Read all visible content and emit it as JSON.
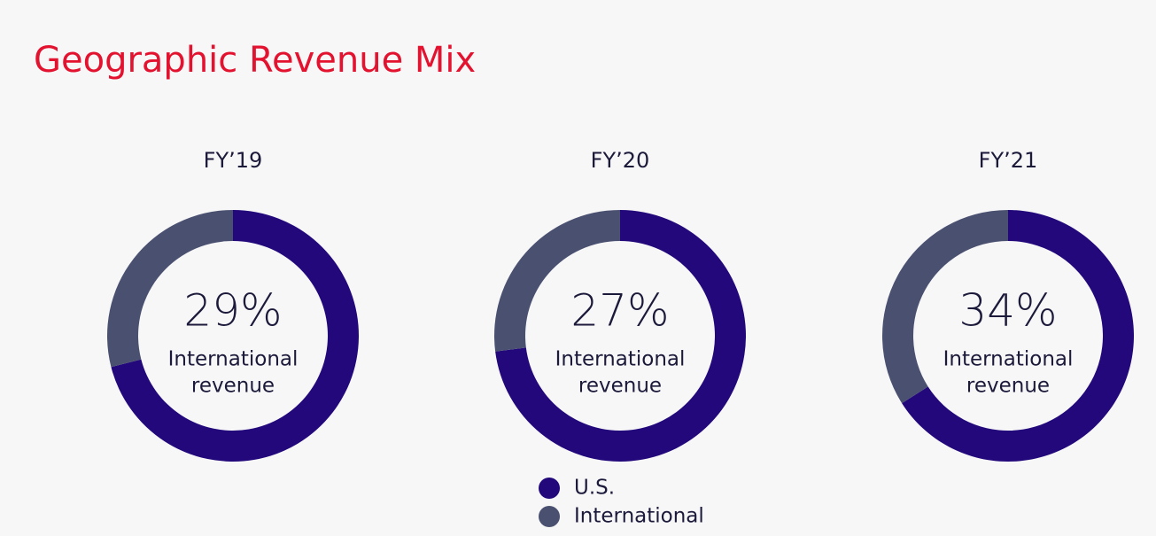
{
  "title": "Geographic Revenue Mix",
  "chart_data": [
    {
      "type": "pie",
      "title": "FY’19",
      "categories": [
        "U.S.",
        "International"
      ],
      "values": [
        71,
        29
      ],
      "value_labels": [
        null,
        "29%"
      ],
      "colors": [
        "#22087a",
        "#4a5070"
      ],
      "donut": true,
      "center_text": [
        "International",
        "revenue"
      ]
    },
    {
      "type": "pie",
      "title": "FY’20",
      "categories": [
        "U.S.",
        "International"
      ],
      "values": [
        73,
        27
      ],
      "value_labels": [
        null,
        "27%"
      ],
      "colors": [
        "#22087a",
        "#4a5070"
      ],
      "donut": true,
      "center_text": [
        "International",
        "revenue"
      ],
      "legend": true
    },
    {
      "type": "pie",
      "title": "FY’21",
      "categories": [
        "U.S.",
        "International"
      ],
      "values": [
        66,
        34
      ],
      "value_labels": [
        null,
        "34%"
      ],
      "colors": [
        "#22087a",
        "#4a5070"
      ],
      "donut": true,
      "center_text": [
        "International",
        "revenue"
      ]
    }
  ]
}
